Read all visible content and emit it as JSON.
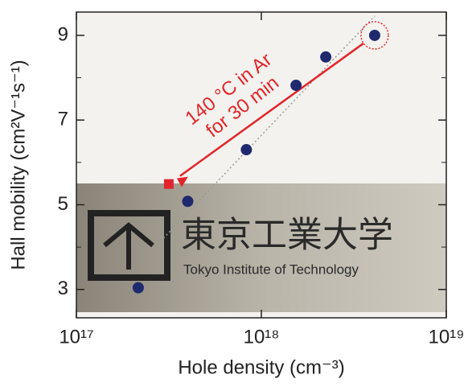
{
  "chart_data": {
    "type": "scatter",
    "x_label": "Hole density (cm⁻³)",
    "y_label": "Hall mobility (cm²V⁻¹s⁻¹)",
    "x": [
      2.16e+17,
      4e+17,
      8.3e+17,
      1.54e+18,
      2.23e+18,
      4.1e+18
    ],
    "values": [
      3.04,
      5.08,
      6.3,
      7.82,
      8.49,
      9.0
    ],
    "color": "#1f2a6e",
    "xlim": [
      1e+17,
      1e+19
    ],
    "log_x": true,
    "xticks": [
      {
        "value": 1e+17,
        "label": "10¹⁷"
      },
      {
        "value": 1e+18,
        "label": "10¹⁸"
      },
      {
        "value": 1e+19,
        "label": "10¹⁹"
      }
    ],
    "ylim": [
      2.33,
      9.55
    ],
    "yticks": [
      3,
      5,
      7,
      9
    ],
    "yminor": [
      4,
      6,
      8
    ],
    "annotation": {
      "lines": [
        "140 °C in Ar",
        "for 30 min"
      ],
      "x": 3.16e+17,
      "y": 5.49,
      "color": "#e0262b"
    },
    "photo_text": [
      "東京工業大学",
      "Tokyo Institute of Technology"
    ]
  }
}
